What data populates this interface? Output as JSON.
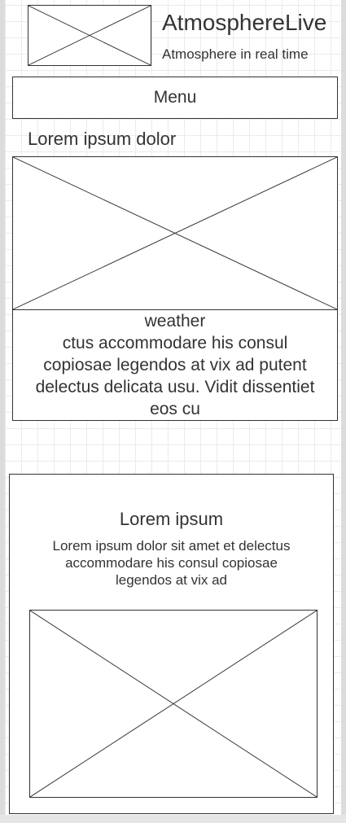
{
  "header": {
    "title": "AtmosphereLive",
    "tagline": "Atmosphere in real time"
  },
  "nav": {
    "menu_label": "Menu"
  },
  "feature": {
    "heading": "Lorem ipsum dolor",
    "caption_title": "weather",
    "caption_lines": [
      "ctus accommodare his consul",
      "copiosae legendos at vix ad putent",
      "delectus delicata usu. Vidit dissentiet",
      "eos cu"
    ]
  },
  "card": {
    "title": "Lorem ipsum",
    "body_lines": [
      "Lorem ipsum dolor sit amet et delectus",
      "accommodare his consul copiosae",
      "legendos at vix ad"
    ]
  }
}
